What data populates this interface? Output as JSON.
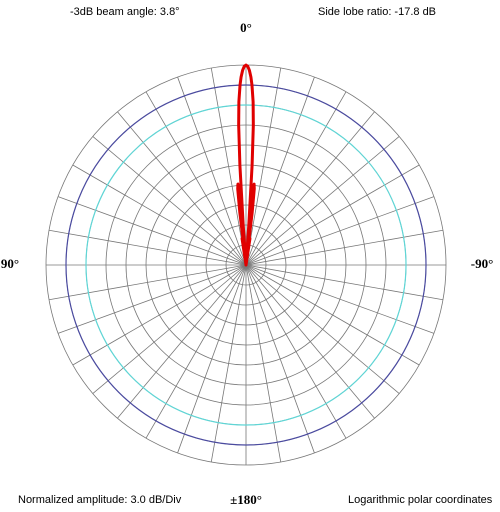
{
  "chart_data": {
    "type": "polar-line",
    "annotations": [
      "-3dB beam angle: 3.8°",
      "Side lobe ratio: -17.8 dB",
      "Normalized amplitude: 3.0 dB/Div",
      "Logarithmic polar coordinates"
    ],
    "thetaticks": [
      {
        "value": 0,
        "label": "0°"
      },
      {
        "value": 90,
        "label": "90°"
      },
      {
        "value": -90,
        "label": "-90°"
      },
      {
        "value": 180,
        "label": "±180°"
      }
    ],
    "rlim": [
      -30,
      0
    ],
    "rticks": [
      -30,
      -27,
      -24,
      -21,
      -18,
      -15,
      -12,
      -9,
      -6,
      -3,
      0
    ],
    "reference_rings": [
      {
        "value": -3,
        "color": "#4b4ba0"
      },
      {
        "value": -6,
        "color": "#5fd6d6"
      }
    ],
    "series": [
      {
        "color": "#e00000",
        "theta": [
          -12,
          -10,
          -8.5,
          -7.5,
          -7.1,
          -6.7,
          -6.2,
          -5.7,
          -5.2,
          -4.7,
          -4.3,
          -4,
          -3.5,
          -3,
          -2.5,
          -1.9,
          -1.5,
          -1,
          -0.5,
          0,
          0.5,
          1,
          1.5,
          1.9,
          2.5,
          3,
          3.5,
          4,
          4.3,
          4.7,
          5.2,
          5.7,
          6.2,
          6.7,
          7.1,
          7.5,
          8.5,
          10,
          12
        ],
        "values": [
          -30,
          -30,
          -26,
          -28,
          -30,
          -22,
          -18.5,
          -17.8,
          -18.5,
          -22,
          -30,
          -24,
          -15,
          -9,
          -5.5,
          -3,
          -1.8,
          -0.8,
          -0.2,
          0,
          -0.2,
          -0.8,
          -1.8,
          -3,
          -5.5,
          -9,
          -15,
          -24,
          -30,
          -22,
          -18.5,
          -17.8,
          -18.5,
          -22,
          -30,
          -28,
          -26,
          -30,
          -30
        ]
      }
    ]
  }
}
